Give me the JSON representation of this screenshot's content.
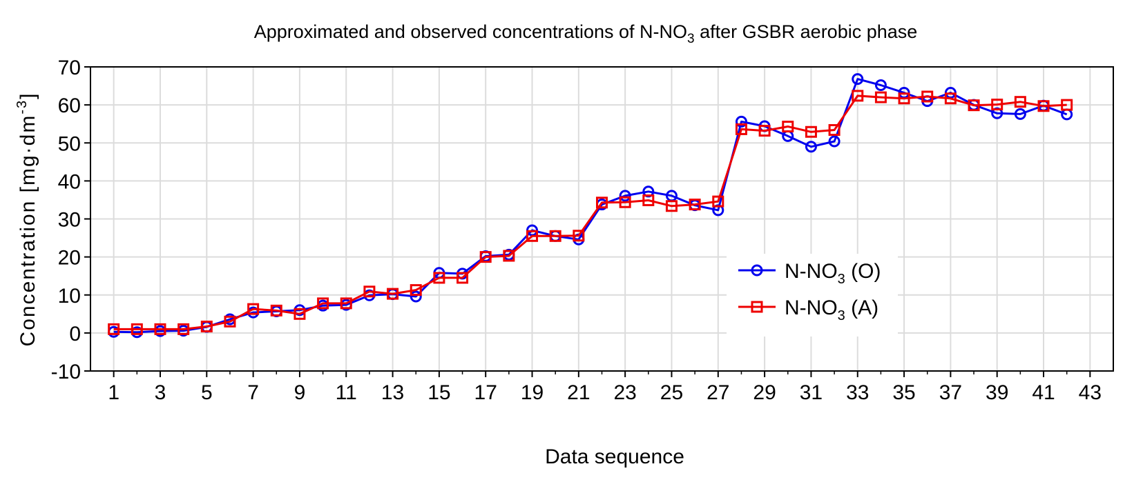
{
  "chart_data": {
    "type": "line",
    "title": "Approximated and observed concentrations of N-NO",
    "title_subscript": "3",
    "title_suffix": " after GSBR aerobic phase",
    "xlabel": "Data sequence",
    "ylabel_main": "Concentration [mg·dm",
    "ylabel_sup": "-3",
    "ylabel_close": "]",
    "xlim": [
      0,
      44
    ],
    "ylim": [
      -10,
      70
    ],
    "x_ticks": [
      1,
      3,
      5,
      7,
      9,
      11,
      13,
      15,
      17,
      19,
      21,
      23,
      25,
      27,
      29,
      31,
      33,
      35,
      37,
      39,
      41,
      43
    ],
    "x_tick_labels": [
      "1",
      "3",
      "5",
      "7",
      "9",
      "11",
      "13",
      "15",
      "17",
      "19",
      "21",
      "23",
      "25",
      "27",
      "29",
      "31",
      "33",
      "35",
      "37",
      "39",
      "41",
      "43"
    ],
    "y_ticks": [
      -10,
      0,
      10,
      20,
      30,
      40,
      50,
      60,
      70
    ],
    "y_tick_labels": [
      "-10",
      "0",
      "10",
      "20",
      "30",
      "40",
      "50",
      "60",
      "70"
    ],
    "grid": true,
    "legend_position": "center-right",
    "series": [
      {
        "name": "N-NO3 (O)",
        "legend_prefix": "N-NO",
        "legend_sub": "3",
        "legend_suffix": " (O)",
        "color": "#0000ee",
        "marker": "circle",
        "x": [
          1,
          2,
          3,
          4,
          5,
          6,
          7,
          8,
          9,
          10,
          11,
          12,
          13,
          14,
          15,
          16,
          17,
          18,
          19,
          20,
          21,
          22,
          23,
          24,
          25,
          26,
          27,
          28,
          29,
          30,
          31,
          32,
          33,
          34,
          35,
          36,
          37,
          38,
          39,
          40,
          41,
          42
        ],
        "values": [
          0.3,
          0.2,
          0.5,
          0.6,
          1.6,
          3.6,
          5.4,
          5.7,
          6.0,
          7.2,
          7.4,
          9.9,
          10.2,
          9.6,
          15.8,
          15.6,
          20.2,
          20.6,
          27.0,
          25.5,
          24.6,
          33.8,
          36.1,
          37.2,
          36.1,
          33.6,
          32.3,
          55.6,
          54.4,
          51.8,
          49.0,
          50.4,
          66.8,
          65.2,
          63.2,
          61.0,
          63.2,
          60.0,
          57.8,
          57.6,
          59.8,
          57.5
        ]
      },
      {
        "name": "N-NO3 (A)",
        "legend_prefix": "N-NO",
        "legend_sub": "3",
        "legend_suffix": " (A)",
        "color": "#ee0000",
        "marker": "square",
        "x": [
          1,
          2,
          3,
          4,
          5,
          6,
          7,
          8,
          9,
          10,
          11,
          12,
          13,
          14,
          15,
          16,
          17,
          18,
          19,
          20,
          21,
          22,
          23,
          24,
          25,
          26,
          27,
          28,
          29,
          30,
          31,
          32,
          33,
          34,
          35,
          36,
          37,
          38,
          39,
          40,
          41,
          42
        ],
        "values": [
          1.0,
          1.0,
          1.0,
          1.0,
          1.7,
          3.0,
          6.3,
          5.9,
          5.0,
          7.8,
          7.8,
          10.9,
          10.3,
          11.3,
          14.5,
          14.5,
          20.0,
          20.3,
          25.5,
          25.5,
          25.6,
          34.3,
          34.4,
          34.9,
          33.4,
          33.8,
          34.6,
          53.6,
          53.2,
          54.3,
          52.9,
          53.4,
          62.4,
          62.0,
          61.7,
          62.2,
          61.7,
          59.9,
          60.1,
          60.8,
          59.7,
          60.0
        ]
      }
    ]
  }
}
